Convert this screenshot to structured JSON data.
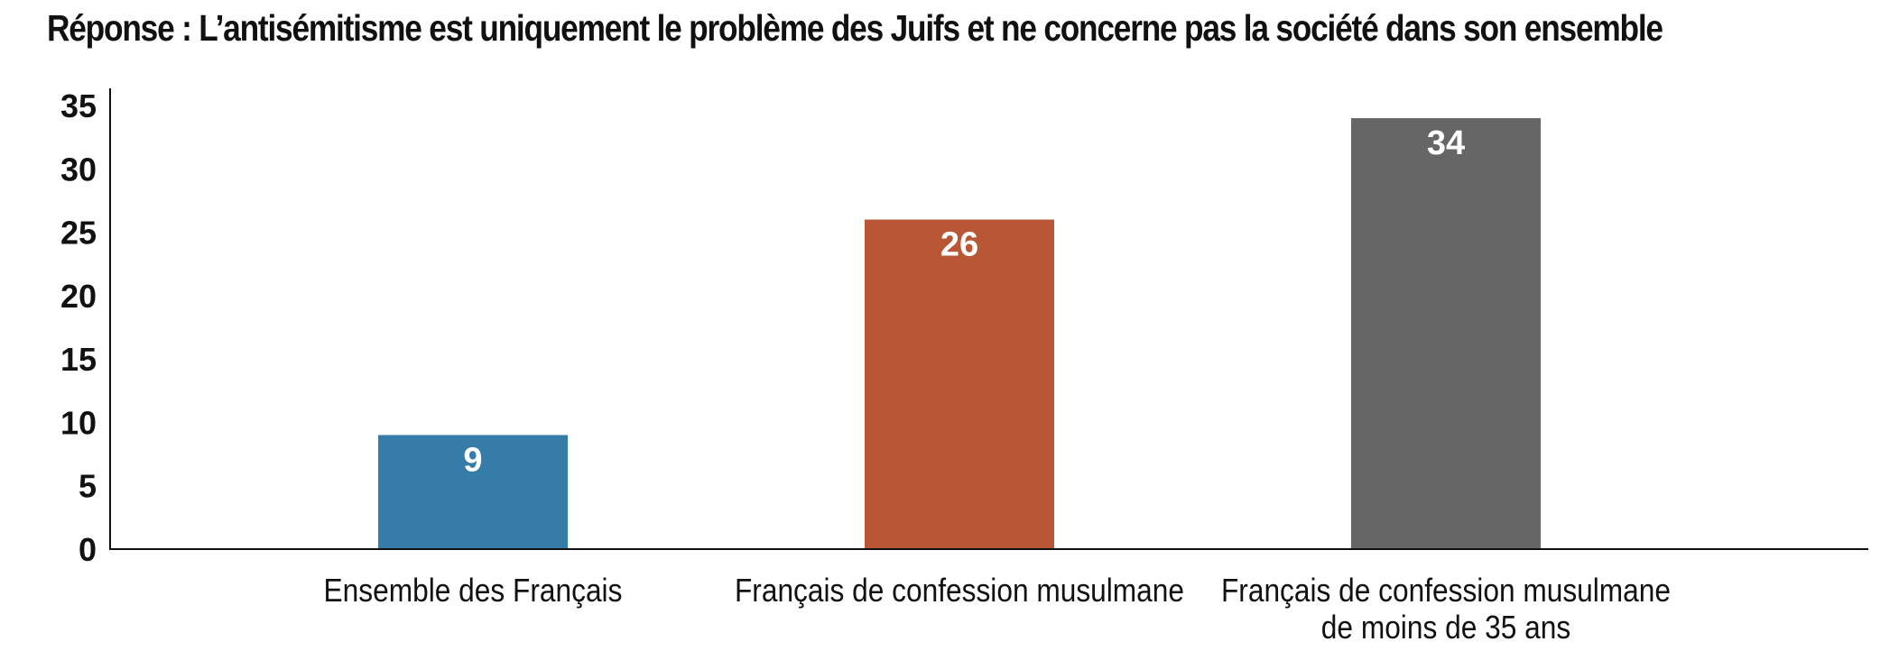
{
  "chart_data": {
    "type": "bar",
    "title": "Réponse : L’antisémitisme est uniquement le problème des Juifs et ne concerne pas la société dans son ensemble",
    "xlabel": "",
    "ylabel": "",
    "ylim": [
      0,
      35
    ],
    "yticks": [
      0,
      5,
      10,
      15,
      20,
      25,
      30,
      35
    ],
    "grid": false,
    "legend": "none",
    "categories": [
      [
        "Ensemble des Français"
      ],
      [
        "Français de confession musulmane"
      ],
      [
        "Français de confession musulmane",
        "de moins de 35 ans"
      ]
    ],
    "values": [
      9,
      26,
      34
    ],
    "data_labels": [
      "9",
      "26",
      "34"
    ],
    "colors": [
      "#357DA8",
      "#B85635",
      "#666666"
    ],
    "label_color": "#ffffff",
    "axis_color": "#111111"
  }
}
